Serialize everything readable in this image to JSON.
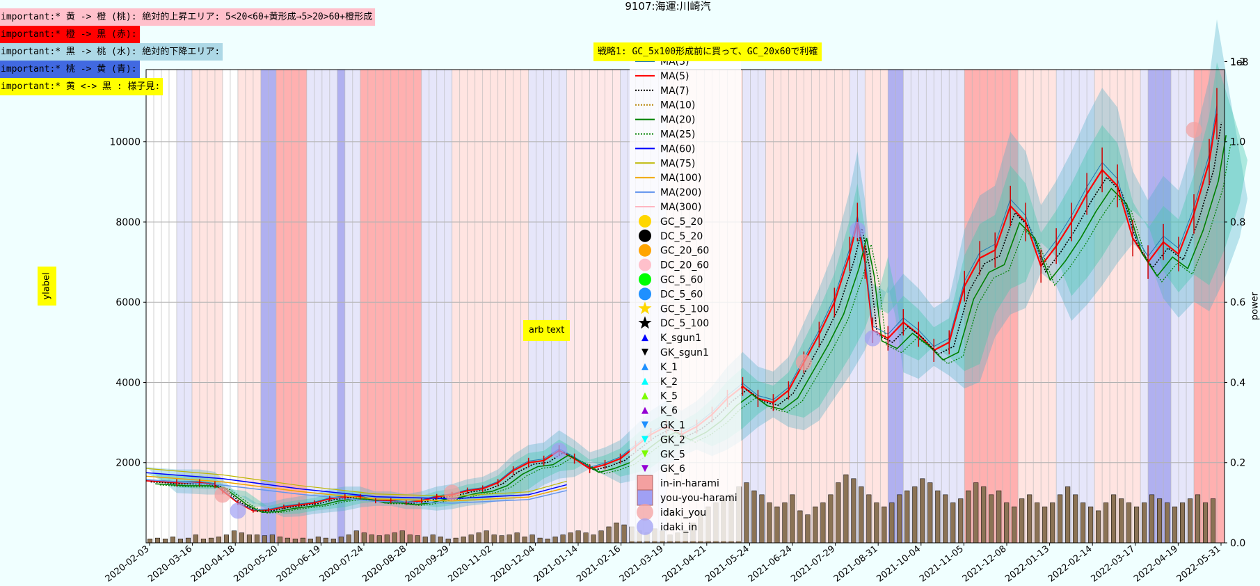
{
  "chart_data": {
    "type": "line",
    "title": "9107:海運:川崎汽",
    "ylabel": "ylabel",
    "y2label": "power",
    "y2_scale_label": "1e8",
    "ylim": [
      0,
      11800
    ],
    "y2lim": [
      0,
      1.18
    ],
    "yticks": [
      2000,
      4000,
      6000,
      8000,
      10000
    ],
    "y2ticks": [
      "0.0",
      "0.2",
      "0.4",
      "0.6",
      "0.8",
      "1.0",
      "1.2"
    ],
    "xticks": [
      "2020-02-03",
      "2020-03-16",
      "2020-04-18",
      "2020-05-20",
      "2020-06-19",
      "2020-07-24",
      "2020-08-28",
      "2020-09-29",
      "2020-11-02",
      "2020-12-04",
      "2021-01-14",
      "2021-02-16",
      "2021-03-19",
      "2021-04-21",
      "2021-05-24",
      "2021-06-24",
      "2021-07-29",
      "2021-08-31",
      "2021-10-04",
      "2021-11-05",
      "2021-12-08",
      "2022-01-13",
      "2022-02-14",
      "2022-03-17",
      "2022-04-19",
      "2022-05-31"
    ],
    "annotations": {
      "strategy": "戦略1: GC_5x100形成前に買って、GC_20x60で利確",
      "arb_text": "arb text"
    },
    "notes": [
      {
        "text": "important:* 黄 -> 橙 (桃): 絶対的上昇エリア: 5<20<60+黄形成→5>20>60+橙形成",
        "color": "#ffc0cb"
      },
      {
        "text": "important:* 橙 -> 黒 (赤):",
        "color": "#ff0000"
      },
      {
        "text": "important:* 黒 -> 桃 (水): 絶対的下降エリア:",
        "color": "#add8e6"
      },
      {
        "text": "important:* 桃 -> 黄 (青):",
        "color": "#4169e1"
      },
      {
        "text": "important:* 黄 <-> 黒 : 様子見:",
        "color": "#ffff00"
      }
    ],
    "legend_position": "center",
    "legend": [
      {
        "label": "MA(3)",
        "kind": "line",
        "color": "#1f77b4",
        "dash": ""
      },
      {
        "label": "MA(5)",
        "kind": "line",
        "color": "#ff0000",
        "dash": ""
      },
      {
        "label": "MA(7)",
        "kind": "line",
        "color": "#000000",
        "dash": "2,2"
      },
      {
        "label": "MA(10)",
        "kind": "line",
        "color": "#b8860b",
        "dash": "2,2"
      },
      {
        "label": "MA(20)",
        "kind": "line",
        "color": "#008000",
        "dash": ""
      },
      {
        "label": "MA(25)",
        "kind": "line",
        "color": "#008000",
        "dash": "2,2"
      },
      {
        "label": "MA(60)",
        "kind": "line",
        "color": "#0000ff",
        "dash": ""
      },
      {
        "label": "MA(75)",
        "kind": "line",
        "color": "#bdb700",
        "dash": ""
      },
      {
        "label": "MA(100)",
        "kind": "line",
        "color": "#f0a500",
        "dash": ""
      },
      {
        "label": "MA(200)",
        "kind": "line",
        "color": "#6495ed",
        "dash": ""
      },
      {
        "label": "MA(300)",
        "kind": "line",
        "color": "#ffb6c1",
        "dash": ""
      },
      {
        "label": "GC_5_20",
        "kind": "circle",
        "color": "#ffd700"
      },
      {
        "label": "DC_5_20",
        "kind": "circle",
        "color": "#000000"
      },
      {
        "label": "GC_20_60",
        "kind": "circle",
        "color": "#ffa500"
      },
      {
        "label": "DC_20_60",
        "kind": "circle",
        "color": "#ffc0cb"
      },
      {
        "label": "GC_5_60",
        "kind": "circle",
        "color": "#00ff00"
      },
      {
        "label": "DC_5_60",
        "kind": "circle",
        "color": "#1e90ff"
      },
      {
        "label": "GC_5_100",
        "kind": "star",
        "color": "#ffd700"
      },
      {
        "label": "DC_5_100",
        "kind": "star",
        "color": "#000000"
      },
      {
        "label": "K_sgun1",
        "kind": "tri-up",
        "color": "#0000ff"
      },
      {
        "label": "GK_sgun1",
        "kind": "tri-down",
        "color": "#000000"
      },
      {
        "label": "K_1",
        "kind": "tri-up",
        "color": "#1e90ff"
      },
      {
        "label": "K_2",
        "kind": "tri-up",
        "color": "#00ffff"
      },
      {
        "label": "K_5",
        "kind": "tri-up",
        "color": "#7cfc00"
      },
      {
        "label": "K_6",
        "kind": "tri-up",
        "color": "#9400d3"
      },
      {
        "label": "GK_1",
        "kind": "tri-down",
        "color": "#1e90ff"
      },
      {
        "label": "GK_2",
        "kind": "tri-down",
        "color": "#00ffff"
      },
      {
        "label": "GK_5",
        "kind": "tri-down",
        "color": "#7cfc00"
      },
      {
        "label": "GK_6",
        "kind": "tri-down",
        "color": "#9400d3"
      },
      {
        "label": "in-in-harami",
        "kind": "rect",
        "color": "#f4a0a0"
      },
      {
        "label": "you-you-harami",
        "kind": "rect",
        "color": "#a0a0f4"
      },
      {
        "label": "idaki_you",
        "kind": "bigcircle",
        "color": "#f4a0a0"
      },
      {
        "label": "idaki_in",
        "kind": "bigcircle",
        "color": "#a0a0f4"
      }
    ],
    "price": [
      [
        0,
        1550
      ],
      [
        4,
        1500
      ],
      [
        7,
        1500
      ],
      [
        9,
        1450
      ],
      [
        10,
        1300
      ],
      [
        12,
        1000
      ],
      [
        14,
        800
      ],
      [
        16,
        820
      ],
      [
        18,
        900
      ],
      [
        20,
        950
      ],
      [
        22,
        1000
      ],
      [
        24,
        1100
      ],
      [
        26,
        1150
      ],
      [
        28,
        1150
      ],
      [
        30,
        1050
      ],
      [
        32,
        1050
      ],
      [
        34,
        1000
      ],
      [
        36,
        1050
      ],
      [
        38,
        1150
      ],
      [
        40,
        1200
      ],
      [
        42,
        1300
      ],
      [
        44,
        1350
      ],
      [
        46,
        1500
      ],
      [
        48,
        1800
      ],
      [
        50,
        2000
      ],
      [
        52,
        2050
      ],
      [
        54,
        2300
      ],
      [
        56,
        2100
      ],
      [
        58,
        1850
      ],
      [
        60,
        1950
      ],
      [
        62,
        2100
      ],
      [
        64,
        2400
      ],
      [
        66,
        2700
      ],
      [
        68,
        2900
      ],
      [
        70,
        2700
      ],
      [
        72,
        2900
      ],
      [
        74,
        3200
      ],
      [
        76,
        3600
      ],
      [
        78,
        3900
      ],
      [
        80,
        3600
      ],
      [
        82,
        3500
      ],
      [
        84,
        3800
      ],
      [
        86,
        4500
      ],
      [
        88,
        5200
      ],
      [
        90,
        6000
      ],
      [
        92,
        7200
      ],
      [
        93,
        8000
      ],
      [
        94,
        7000
      ],
      [
        95,
        5300
      ],
      [
        97,
        5100
      ],
      [
        99,
        5500
      ],
      [
        101,
        5200
      ],
      [
        103,
        4800
      ],
      [
        105,
        5000
      ],
      [
        107,
        6400
      ],
      [
        109,
        7100
      ],
      [
        111,
        7300
      ],
      [
        113,
        8400
      ],
      [
        115,
        8000
      ],
      [
        117,
        6900
      ],
      [
        119,
        7400
      ],
      [
        121,
        8000
      ],
      [
        123,
        8700
      ],
      [
        125,
        9300
      ],
      [
        127,
        8900
      ],
      [
        129,
        7600
      ],
      [
        131,
        7000
      ],
      [
        133,
        7500
      ],
      [
        135,
        7200
      ],
      [
        137,
        8200
      ],
      [
        139,
        9500
      ],
      [
        140,
        10700
      ]
    ],
    "ma_slow": [
      [
        0,
        1750
      ],
      [
        10,
        1600
      ],
      [
        20,
        1350
      ],
      [
        30,
        1150
      ],
      [
        40,
        1100
      ],
      [
        50,
        1200
      ],
      [
        55,
        1450
      ]
    ],
    "volume": [
      0.01,
      0.012,
      0.01,
      0.015,
      0.01,
      0.012,
      0.02,
      0.01,
      0.012,
      0.015,
      0.02,
      0.03,
      0.025,
      0.02,
      0.02,
      0.018,
      0.02,
      0.015,
      0.012,
      0.01,
      0.012,
      0.01,
      0.015,
      0.012,
      0.01,
      0.015,
      0.02,
      0.03,
      0.025,
      0.02,
      0.018,
      0.02,
      0.025,
      0.03,
      0.02,
      0.018,
      0.015,
      0.02,
      0.015,
      0.01,
      0.012,
      0.015,
      0.02,
      0.025,
      0.03,
      0.02,
      0.018,
      0.02,
      0.025,
      0.015,
      0.02,
      0.012,
      0.01,
      0.015,
      0.02,
      0.025,
      0.03,
      0.025,
      0.02,
      0.03,
      0.04,
      0.05,
      0.045,
      0.04,
      0.03,
      0.025,
      0.035,
      0.03,
      0.02,
      0.025,
      0.03,
      0.05,
      0.08,
      0.09,
      0.1,
      0.11,
      0.12,
      0.14,
      0.15,
      0.13,
      0.12,
      0.1,
      0.09,
      0.1,
      0.12,
      0.08,
      0.07,
      0.09,
      0.1,
      0.12,
      0.15,
      0.17,
      0.16,
      0.14,
      0.12,
      0.1,
      0.09,
      0.1,
      0.12,
      0.13,
      0.14,
      0.16,
      0.15,
      0.13,
      0.12,
      0.1,
      0.11,
      0.13,
      0.15,
      0.14,
      0.12,
      0.13,
      0.1,
      0.09,
      0.11,
      0.12,
      0.1,
      0.09,
      0.1,
      0.12,
      0.14,
      0.12,
      0.1,
      0.09,
      0.08,
      0.1,
      0.12,
      0.11,
      0.1,
      0.09,
      0.1,
      0.12,
      0.11,
      0.1,
      0.09,
      0.1,
      0.11,
      0.12,
      0.1,
      0.11
    ]
  }
}
